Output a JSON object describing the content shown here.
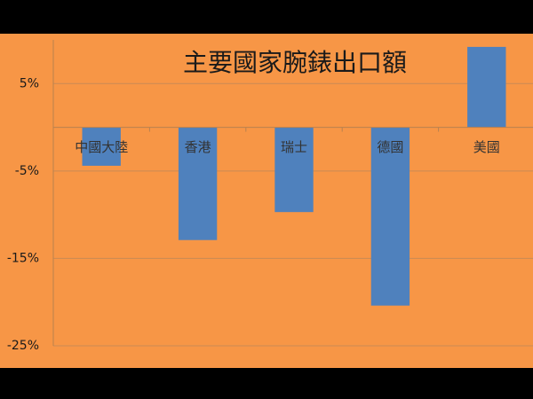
{
  "chart_data": {
    "type": "bar",
    "title": "主要國家腕錶出口額",
    "categories": [
      "中國大陸",
      "香港",
      "瑞士",
      "德國",
      "美國"
    ],
    "values": [
      -4.4,
      -12.9,
      -9.7,
      -20.4,
      9.2
    ],
    "color": "#4f81bd",
    "ylim": [
      -25,
      10
    ],
    "yticks": [
      {
        "value": 5,
        "label": "5%"
      },
      {
        "value": -5,
        "label": "-5%"
      },
      {
        "value": -15,
        "label": "-15%"
      },
      {
        "value": -25,
        "label": "-25%"
      }
    ],
    "grid": true
  }
}
